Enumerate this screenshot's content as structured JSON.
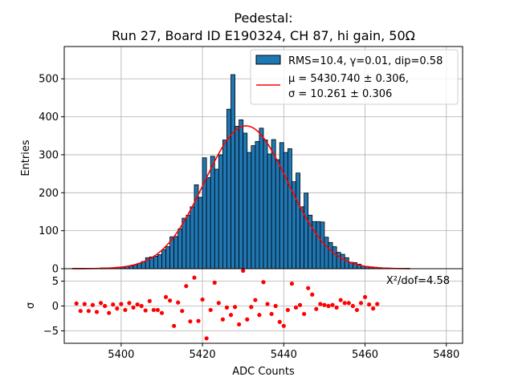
{
  "title_line1": "Pedestal:",
  "title_line2": "Run 27, Board ID E190324, CH 87, hi gain, 50Ω",
  "chart_data": [
    {
      "type": "bar",
      "ylabel": "Entries",
      "xlim": [
        5386,
        5484
      ],
      "ylim": [
        0,
        585
      ],
      "xticks": [
        5400,
        5420,
        5440,
        5460,
        5480
      ],
      "yticks": [
        0,
        100,
        200,
        300,
        400,
        500
      ],
      "grid": true,
      "legend_position": "top-right",
      "bin_width": 1,
      "bin_start": 5388,
      "counts": [
        1,
        1,
        1,
        1,
        1,
        1,
        1,
        2,
        2,
        2,
        3,
        4,
        4,
        6,
        7,
        10,
        14,
        19,
        29,
        31,
        33,
        37,
        50,
        58,
        84,
        85,
        105,
        133,
        141,
        163,
        221,
        188,
        292,
        240,
        296,
        262,
        300,
        339,
        420,
        511,
        375,
        392,
        357,
        306,
        324,
        335,
        370,
        339,
        302,
        340,
        287,
        332,
        306,
        316,
        229,
        252,
        163,
        199,
        141,
        124,
        124,
        123,
        83,
        69,
        58,
        43,
        38,
        29,
        17,
        16,
        12,
        7,
        6,
        5,
        4,
        3,
        2,
        2,
        1,
        1,
        1,
        1,
        1
      ],
      "series": [
        {
          "name": "RMS=10.4, γ=0.01, dip=0.58",
          "kind": "histogram",
          "color": "#1f77b4"
        },
        {
          "name_line1": "μ = 5430.740 ± 0.306,",
          "name_line2": "σ = 10.261 ± 0.306",
          "kind": "gaussian_fit",
          "mu": 5430.74,
          "sigma": 10.261,
          "amplitude": 376,
          "color": "#ff0000"
        }
      ]
    },
    {
      "type": "scatter",
      "xlabel": "ADC Counts",
      "ylabel": "σ",
      "xlim": [
        5386,
        5484
      ],
      "ylim": [
        -7.5,
        7.5
      ],
      "xticks": [
        5400,
        5420,
        5440,
        5460,
        5480
      ],
      "yticks": [
        -5,
        0,
        5
      ],
      "grid": true,
      "annotation": "X²/dof=4.58",
      "color": "#ff0000",
      "points": [
        [
          5389,
          0.5
        ],
        [
          5390,
          -1.0
        ],
        [
          5391,
          0.4
        ],
        [
          5392,
          -1.0
        ],
        [
          5393,
          0.2
        ],
        [
          5394,
          -1.2
        ],
        [
          5395,
          0.6
        ],
        [
          5396,
          0.0
        ],
        [
          5397,
          -1.4
        ],
        [
          5398,
          0.3
        ],
        [
          5399,
          -0.5
        ],
        [
          5400,
          0.4
        ],
        [
          5401,
          -0.8
        ],
        [
          5402,
          0.6
        ],
        [
          5403,
          -0.3
        ],
        [
          5404,
          0.3
        ],
        [
          5405,
          0.0
        ],
        [
          5406,
          -0.9
        ],
        [
          5407,
          1.0
        ],
        [
          5408,
          -0.8
        ],
        [
          5409,
          -0.8
        ],
        [
          5410,
          -1.4
        ],
        [
          5411,
          1.8
        ],
        [
          5412,
          1.1
        ],
        [
          5413,
          -4.0
        ],
        [
          5414,
          0.7
        ],
        [
          5415,
          -1.0
        ],
        [
          5416,
          4.0
        ],
        [
          5417,
          -3.1
        ],
        [
          5418,
          5.7
        ],
        [
          5419,
          -3.0
        ],
        [
          5420,
          1.3
        ],
        [
          5421,
          -6.5
        ],
        [
          5422,
          -0.8
        ],
        [
          5423,
          4.7
        ],
        [
          5424,
          0.6
        ],
        [
          5425,
          -2.7
        ],
        [
          5426,
          -0.3
        ],
        [
          5427,
          -1.8
        ],
        [
          5428,
          -0.2
        ],
        [
          5429,
          -3.7
        ],
        [
          5430,
          7.1
        ],
        [
          5431,
          -2.7
        ],
        [
          5432,
          -0.2
        ],
        [
          5433,
          1.2
        ],
        [
          5434,
          -1.8
        ],
        [
          5435,
          4.8
        ],
        [
          5436,
          0.4
        ],
        [
          5437,
          -1.6
        ],
        [
          5438,
          0.0
        ],
        [
          5439,
          -3.2
        ],
        [
          5440,
          -4.0
        ],
        [
          5441,
          -0.8
        ],
        [
          5442,
          4.5
        ],
        [
          5443,
          -0.3
        ],
        [
          5444,
          0.2
        ],
        [
          5445,
          -1.6
        ],
        [
          5446,
          3.6
        ],
        [
          5447,
          2.3
        ],
        [
          5448,
          -0.6
        ],
        [
          5449,
          0.4
        ],
        [
          5450,
          0.2
        ],
        [
          5451,
          0.0
        ],
        [
          5452,
          0.2
        ],
        [
          5453,
          -0.3
        ],
        [
          5454,
          1.2
        ],
        [
          5455,
          0.6
        ],
        [
          5456,
          0.6
        ],
        [
          5457,
          0.0
        ],
        [
          5458,
          -0.8
        ],
        [
          5459,
          0.6
        ],
        [
          5460,
          1.8
        ],
        [
          5461,
          0.3
        ],
        [
          5462,
          -0.5
        ],
        [
          5463,
          0.4
        ]
      ]
    }
  ],
  "colors": {
    "bar_fill": "#1f77b4",
    "fit_line": "#ff0000",
    "residual_points": "#ff0000",
    "grid": "#b0b0b0"
  }
}
